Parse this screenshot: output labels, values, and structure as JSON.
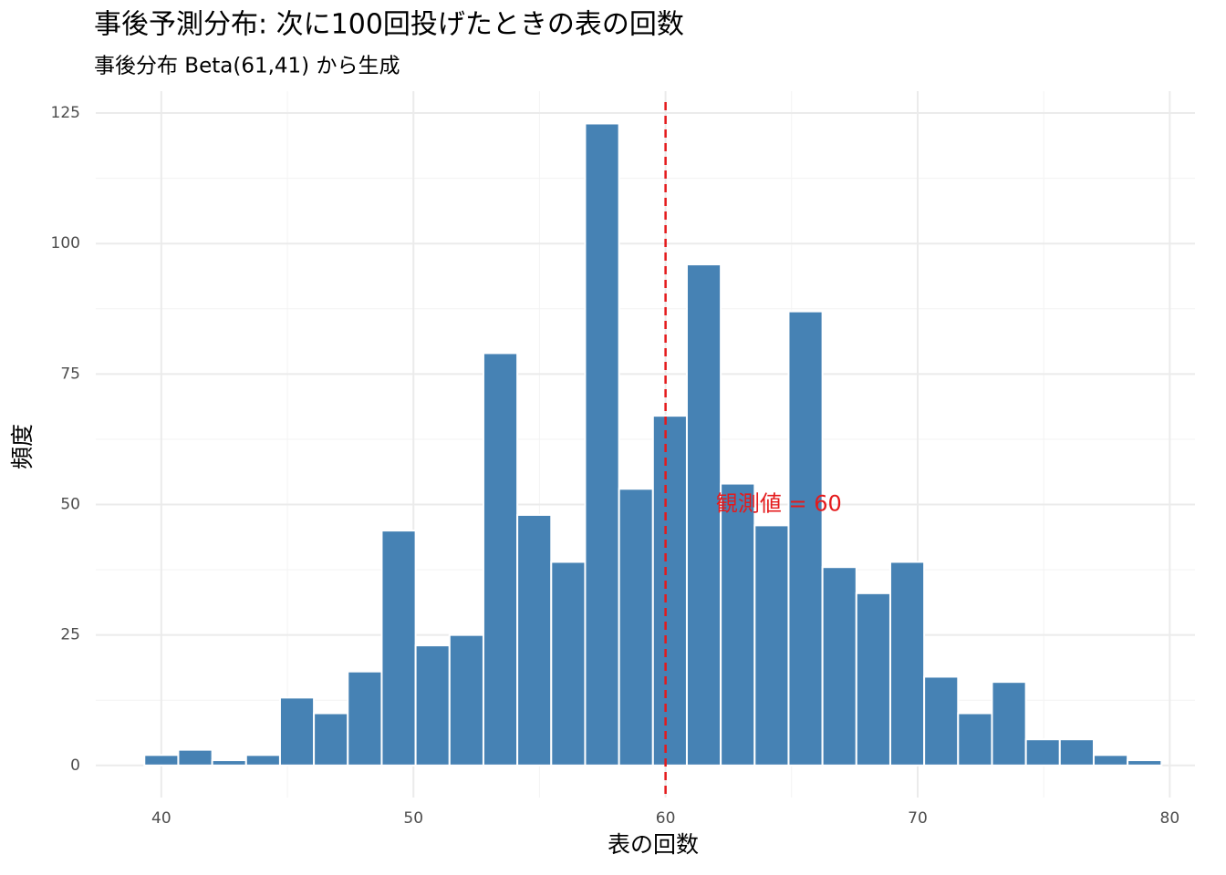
{
  "chart_data": {
    "type": "histogram",
    "title": "事後予測分布: 次に100回投げたときの表の回数",
    "subtitle": "事後分布 Beta(61,41) から生成",
    "x_label": "表の回数",
    "y_label": "頻度",
    "bins": [
      39.3276,
      40.6724,
      42.0172,
      43.3621,
      44.7069,
      46.0517,
      47.3966,
      48.7414,
      50.0862,
      51.431,
      52.7759,
      54.1207,
      55.4655,
      56.8103,
      58.1552,
      59.5,
      60.8448,
      62.1897,
      63.5345,
      64.8793,
      66.2241,
      67.569,
      68.9138,
      70.2586,
      71.6034,
      72.9483,
      74.2931,
      75.6379,
      76.9828,
      78.3276,
      79.6724
    ],
    "values": [
      2,
      3,
      1,
      2,
      13,
      10,
      18,
      45,
      23,
      25,
      79,
      48,
      39,
      123,
      53,
      67,
      96,
      54,
      46,
      87,
      38,
      33,
      39,
      17,
      10,
      16,
      5,
      5,
      2,
      1
    ],
    "color": "#4682b4",
    "xlim": [
      37.4,
      81
    ],
    "ylim": [
      -6.15,
      129.2
    ],
    "xticks": [
      40,
      50,
      60,
      70,
      80
    ],
    "yticks": [
      0,
      25,
      50,
      75,
      100,
      125
    ],
    "x_minor_ticks": [
      45,
      55,
      65,
      75
    ],
    "y_minor_ticks": [
      12.5,
      37.5,
      62.5,
      87.5,
      112.5
    ],
    "grid": true,
    "vline": {
      "x": 60,
      "color": "#e41a1c"
    },
    "annotations": [
      {
        "text": "観測値 = 60",
        "x": 62,
        "y": 50,
        "color": "#e41a1c"
      }
    ]
  }
}
